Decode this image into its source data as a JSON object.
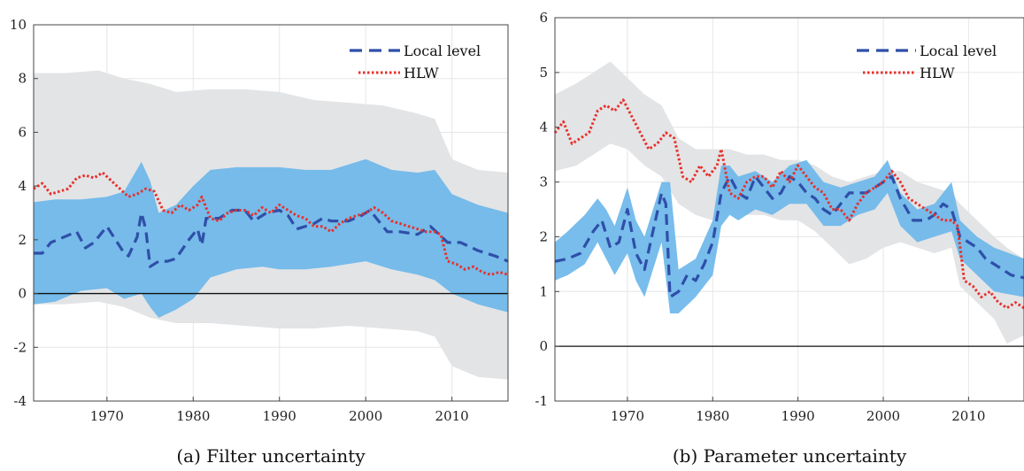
{
  "colors": {
    "gray_band": "#e3e4e6",
    "blue_band": "#6cb7ea",
    "local_level": "#2f4fa8",
    "hlw": "#e8302b",
    "zero_line": "#111111",
    "grid": "#e6e6e6",
    "axis": "#444444"
  },
  "chart_data": [
    {
      "type": "line",
      "title": "",
      "caption": "(a) Filter uncertainty",
      "xlabel": "",
      "ylabel": "",
      "xlim": [
        1961.5,
        2016.5
      ],
      "ylim": [
        -4,
        10
      ],
      "xticks": [
        1970,
        1980,
        1990,
        2000,
        2010
      ],
      "yticks": [
        -4,
        -2,
        0,
        2,
        4,
        6,
        8,
        10
      ],
      "grid": true,
      "legend_position": "top-right",
      "hline": 0,
      "bands": [
        {
          "role": "outer",
          "x": [
            1961.5,
            1965,
            1969,
            1972,
            1975,
            1978,
            1982,
            1986,
            1990,
            1994,
            1998,
            2002,
            2006,
            2008,
            2010,
            2013,
            2016.5
          ],
          "upper": [
            8.2,
            8.2,
            8.3,
            8.0,
            7.8,
            7.5,
            7.6,
            7.6,
            7.5,
            7.2,
            7.1,
            7.0,
            6.7,
            6.5,
            5.0,
            4.6,
            4.5
          ],
          "lower": [
            -0.4,
            -0.4,
            -0.3,
            -0.5,
            -0.9,
            -1.1,
            -1.1,
            -1.2,
            -1.3,
            -1.3,
            -1.2,
            -1.3,
            -1.4,
            -1.6,
            -2.7,
            -3.1,
            -3.2
          ]
        },
        {
          "role": "inner",
          "x": [
            1961.5,
            1964,
            1967,
            1970,
            1972,
            1974,
            1975,
            1976,
            1978,
            1980,
            1982,
            1985,
            1988,
            1990,
            1993,
            1996,
            2000,
            2003,
            2006,
            2008,
            2010,
            2013,
            2016.5
          ],
          "upper": [
            3.4,
            3.5,
            3.5,
            3.6,
            3.8,
            4.9,
            4.2,
            3.0,
            3.3,
            4.0,
            4.6,
            4.7,
            4.7,
            4.7,
            4.6,
            4.6,
            5.0,
            4.6,
            4.5,
            4.6,
            3.7,
            3.3,
            3.0
          ],
          "lower": [
            -0.4,
            -0.3,
            0.1,
            0.2,
            -0.2,
            0.0,
            -0.5,
            -0.9,
            -0.6,
            -0.2,
            0.6,
            0.9,
            1.0,
            0.9,
            0.9,
            1.0,
            1.2,
            0.9,
            0.7,
            0.5,
            0.0,
            -0.4,
            -0.7
          ]
        }
      ],
      "series": [
        {
          "name": "Local level",
          "style": "dashed",
          "x": [
            1961.5,
            1962.5,
            1963.5,
            1965,
            1966.5,
            1967.5,
            1968.5,
            1970,
            1971,
            1972,
            1972.5,
            1973.5,
            1974,
            1974.5,
            1975,
            1976,
            1977,
            1978,
            1979.5,
            1980.5,
            1981,
            1981.5,
            1983,
            1984.5,
            1986,
            1987,
            1988.5,
            1990,
            1991,
            1992,
            1993,
            1994,
            1995,
            1996,
            1998,
            1999.5,
            2000.5,
            2001.5,
            2002.5,
            2004,
            2006,
            2007.5,
            2008.5,
            2009.5,
            2011,
            2013,
            2015,
            2016.5
          ],
          "y": [
            1.5,
            1.5,
            1.9,
            2.1,
            2.3,
            1.7,
            1.9,
            2.5,
            2.0,
            1.5,
            1.4,
            2.1,
            3.0,
            2.4,
            1.0,
            1.2,
            1.2,
            1.3,
            2.0,
            2.4,
            1.8,
            2.8,
            2.8,
            3.1,
            3.1,
            2.7,
            3.0,
            3.1,
            2.9,
            2.4,
            2.5,
            2.6,
            2.8,
            2.7,
            2.7,
            2.9,
            3.1,
            2.7,
            2.3,
            2.3,
            2.2,
            2.5,
            2.2,
            1.9,
            1.9,
            1.6,
            1.4,
            1.2
          ]
        },
        {
          "name": "HLW",
          "style": "dotted",
          "x": [
            1961.5,
            1962.5,
            1963.5,
            1964.5,
            1965.5,
            1966.5,
            1967.5,
            1968.5,
            1969.5,
            1970.5,
            1971.5,
            1972.5,
            1973.5,
            1974.5,
            1975.5,
            1976.5,
            1977.5,
            1978.5,
            1979.5,
            1980.5,
            1981,
            1982,
            1983,
            1984,
            1985,
            1986,
            1987,
            1988,
            1989,
            1990,
            1991,
            1992,
            1993,
            1994,
            1995,
            1996,
            1997,
            1998,
            1999,
            2000,
            2001,
            2002,
            2003,
            2004,
            2005,
            2006,
            2007,
            2008,
            2008.7,
            2009.5,
            2010.5,
            2011.5,
            2012.5,
            2013.5,
            2014.5,
            2015.5,
            2016.5
          ],
          "y": [
            3.9,
            4.1,
            3.7,
            3.8,
            3.9,
            4.3,
            4.4,
            4.3,
            4.5,
            4.2,
            3.9,
            3.6,
            3.7,
            3.9,
            3.8,
            3.1,
            3.0,
            3.3,
            3.1,
            3.3,
            3.6,
            2.8,
            2.7,
            3.0,
            3.1,
            3.1,
            2.9,
            3.2,
            3.0,
            3.3,
            3.1,
            2.9,
            2.8,
            2.5,
            2.5,
            2.3,
            2.6,
            2.8,
            2.9,
            3.0,
            3.2,
            3.0,
            2.7,
            2.6,
            2.5,
            2.4,
            2.3,
            2.3,
            2.2,
            1.2,
            1.1,
            0.9,
            1.0,
            0.8,
            0.7,
            0.8,
            0.7
          ]
        }
      ]
    },
    {
      "type": "line",
      "title": "",
      "caption": "(b) Parameter uncertainty",
      "xlabel": "",
      "ylabel": "",
      "xlim": [
        1961.5,
        2016.5
      ],
      "ylim": [
        -1,
        6
      ],
      "xticks": [
        1970,
        1980,
        1990,
        2000,
        2010
      ],
      "yticks": [
        -1,
        0,
        1,
        2,
        3,
        4,
        5,
        6
      ],
      "grid": true,
      "legend_position": "top-right",
      "hline": 0,
      "bands": [
        {
          "role": "outer",
          "x": [
            1961.5,
            1964,
            1966,
            1968,
            1970,
            1972,
            1974,
            1976,
            1978,
            1980,
            1982,
            1984,
            1986,
            1988,
            1990,
            1992,
            1994,
            1996,
            1998,
            2000,
            2002,
            2004,
            2006,
            2008,
            2009,
            2011,
            2013,
            2014.5,
            2016.5
          ],
          "upper": [
            4.6,
            4.8,
            5.0,
            5.2,
            4.9,
            4.6,
            4.4,
            3.8,
            3.6,
            3.6,
            3.6,
            3.5,
            3.5,
            3.4,
            3.4,
            3.3,
            3.1,
            3.0,
            3.1,
            3.2,
            3.2,
            3.0,
            2.9,
            2.8,
            2.6,
            2.3,
            2.0,
            1.8,
            1.6
          ],
          "lower": [
            3.2,
            3.3,
            3.5,
            3.7,
            3.6,
            3.3,
            3.1,
            2.6,
            2.4,
            2.3,
            2.5,
            2.4,
            2.4,
            2.3,
            2.3,
            2.1,
            1.8,
            1.5,
            1.6,
            1.8,
            1.9,
            1.8,
            1.7,
            1.8,
            1.1,
            0.8,
            0.5,
            0.05,
            0.2
          ]
        },
        {
          "role": "inner",
          "x": [
            1961.5,
            1963,
            1965,
            1966.5,
            1967.5,
            1968.5,
            1970,
            1971,
            1972,
            1973,
            1974,
            1975,
            1976,
            1978,
            1980,
            1981,
            1982,
            1983,
            1985,
            1987,
            1989,
            1991,
            1993,
            1995,
            1997,
            1999,
            2000.5,
            2002,
            2004,
            2006,
            2008,
            2009,
            2011,
            2013,
            2016.5
          ],
          "upper": [
            1.9,
            2.1,
            2.4,
            2.7,
            2.5,
            2.2,
            2.9,
            2.3,
            2.0,
            2.5,
            3.0,
            3.0,
            1.4,
            1.6,
            2.3,
            3.3,
            3.3,
            3.1,
            3.2,
            3.0,
            3.3,
            3.4,
            3.0,
            2.9,
            3.0,
            3.1,
            3.4,
            2.8,
            2.5,
            2.6,
            3.0,
            2.3,
            2.0,
            1.8,
            1.6
          ],
          "lower": [
            1.2,
            1.3,
            1.5,
            1.9,
            1.6,
            1.3,
            1.7,
            1.2,
            0.9,
            1.4,
            1.9,
            0.6,
            0.6,
            0.9,
            1.3,
            2.2,
            2.4,
            2.3,
            2.5,
            2.4,
            2.6,
            2.6,
            2.2,
            2.2,
            2.4,
            2.5,
            2.8,
            2.2,
            1.9,
            2.0,
            2.1,
            1.6,
            1.3,
            1.0,
            0.9
          ]
        }
      ],
      "series": [
        {
          "name": "Local level",
          "style": "dashed",
          "x": [
            1961.5,
            1963,
            1964.5,
            1966,
            1967,
            1968,
            1969,
            1970,
            1971,
            1972,
            1973,
            1974,
            1974.5,
            1975,
            1976,
            1977,
            1978,
            1979,
            1980,
            1981,
            1982,
            1983,
            1984,
            1985,
            1986,
            1987,
            1988,
            1989,
            1990,
            1991,
            1992,
            1993,
            1994,
            1995,
            1996,
            1998,
            2000,
            2001,
            2002,
            2003.5,
            2005,
            2006,
            2007,
            2008,
            2009,
            2010,
            2011,
            2012,
            2013,
            2014,
            2015,
            2016.5
          ],
          "y": [
            1.55,
            1.6,
            1.7,
            2.1,
            2.3,
            1.8,
            1.9,
            2.5,
            1.7,
            1.4,
            2.1,
            2.8,
            2.6,
            0.9,
            1.0,
            1.3,
            1.2,
            1.5,
            1.9,
            2.8,
            3.1,
            2.8,
            2.7,
            3.1,
            2.9,
            2.7,
            2.8,
            3.1,
            3.0,
            2.8,
            2.7,
            2.5,
            2.4,
            2.6,
            2.8,
            2.8,
            3.0,
            3.1,
            2.7,
            2.3,
            2.3,
            2.4,
            2.6,
            2.5,
            2.0,
            1.9,
            1.8,
            1.6,
            1.5,
            1.4,
            1.3,
            1.25
          ]
        },
        {
          "name": "HLW",
          "style": "dotted",
          "x": [
            1961.5,
            1962.5,
            1963.5,
            1964.5,
            1965.5,
            1966.5,
            1967.5,
            1968.5,
            1969.5,
            1970.5,
            1971.5,
            1972.5,
            1973.5,
            1974.5,
            1975.5,
            1976.5,
            1977.5,
            1978.5,
            1979.5,
            1980.5,
            1981,
            1982,
            1983,
            1984,
            1985,
            1986,
            1987,
            1988,
            1989,
            1990,
            1991,
            1992,
            1993,
            1994,
            1995,
            1996,
            1997,
            1998,
            1999,
            2000,
            2001,
            2002,
            2003,
            2004,
            2005,
            2006,
            2007,
            2008,
            2008.7,
            2009.5,
            2010.5,
            2011.5,
            2012.5,
            2013.5,
            2014.5,
            2015.5,
            2016.5
          ],
          "y": [
            3.9,
            4.1,
            3.7,
            3.8,
            3.9,
            4.3,
            4.4,
            4.3,
            4.5,
            4.2,
            3.9,
            3.6,
            3.7,
            3.9,
            3.8,
            3.1,
            3.0,
            3.3,
            3.1,
            3.3,
            3.6,
            2.8,
            2.7,
            3.0,
            3.1,
            3.1,
            2.9,
            3.2,
            3.0,
            3.3,
            3.1,
            2.9,
            2.8,
            2.5,
            2.5,
            2.3,
            2.6,
            2.8,
            2.9,
            3.0,
            3.2,
            3.0,
            2.7,
            2.6,
            2.5,
            2.4,
            2.3,
            2.3,
            2.2,
            1.2,
            1.1,
            0.9,
            1.0,
            0.8,
            0.7,
            0.8,
            0.7
          ]
        }
      ]
    }
  ]
}
